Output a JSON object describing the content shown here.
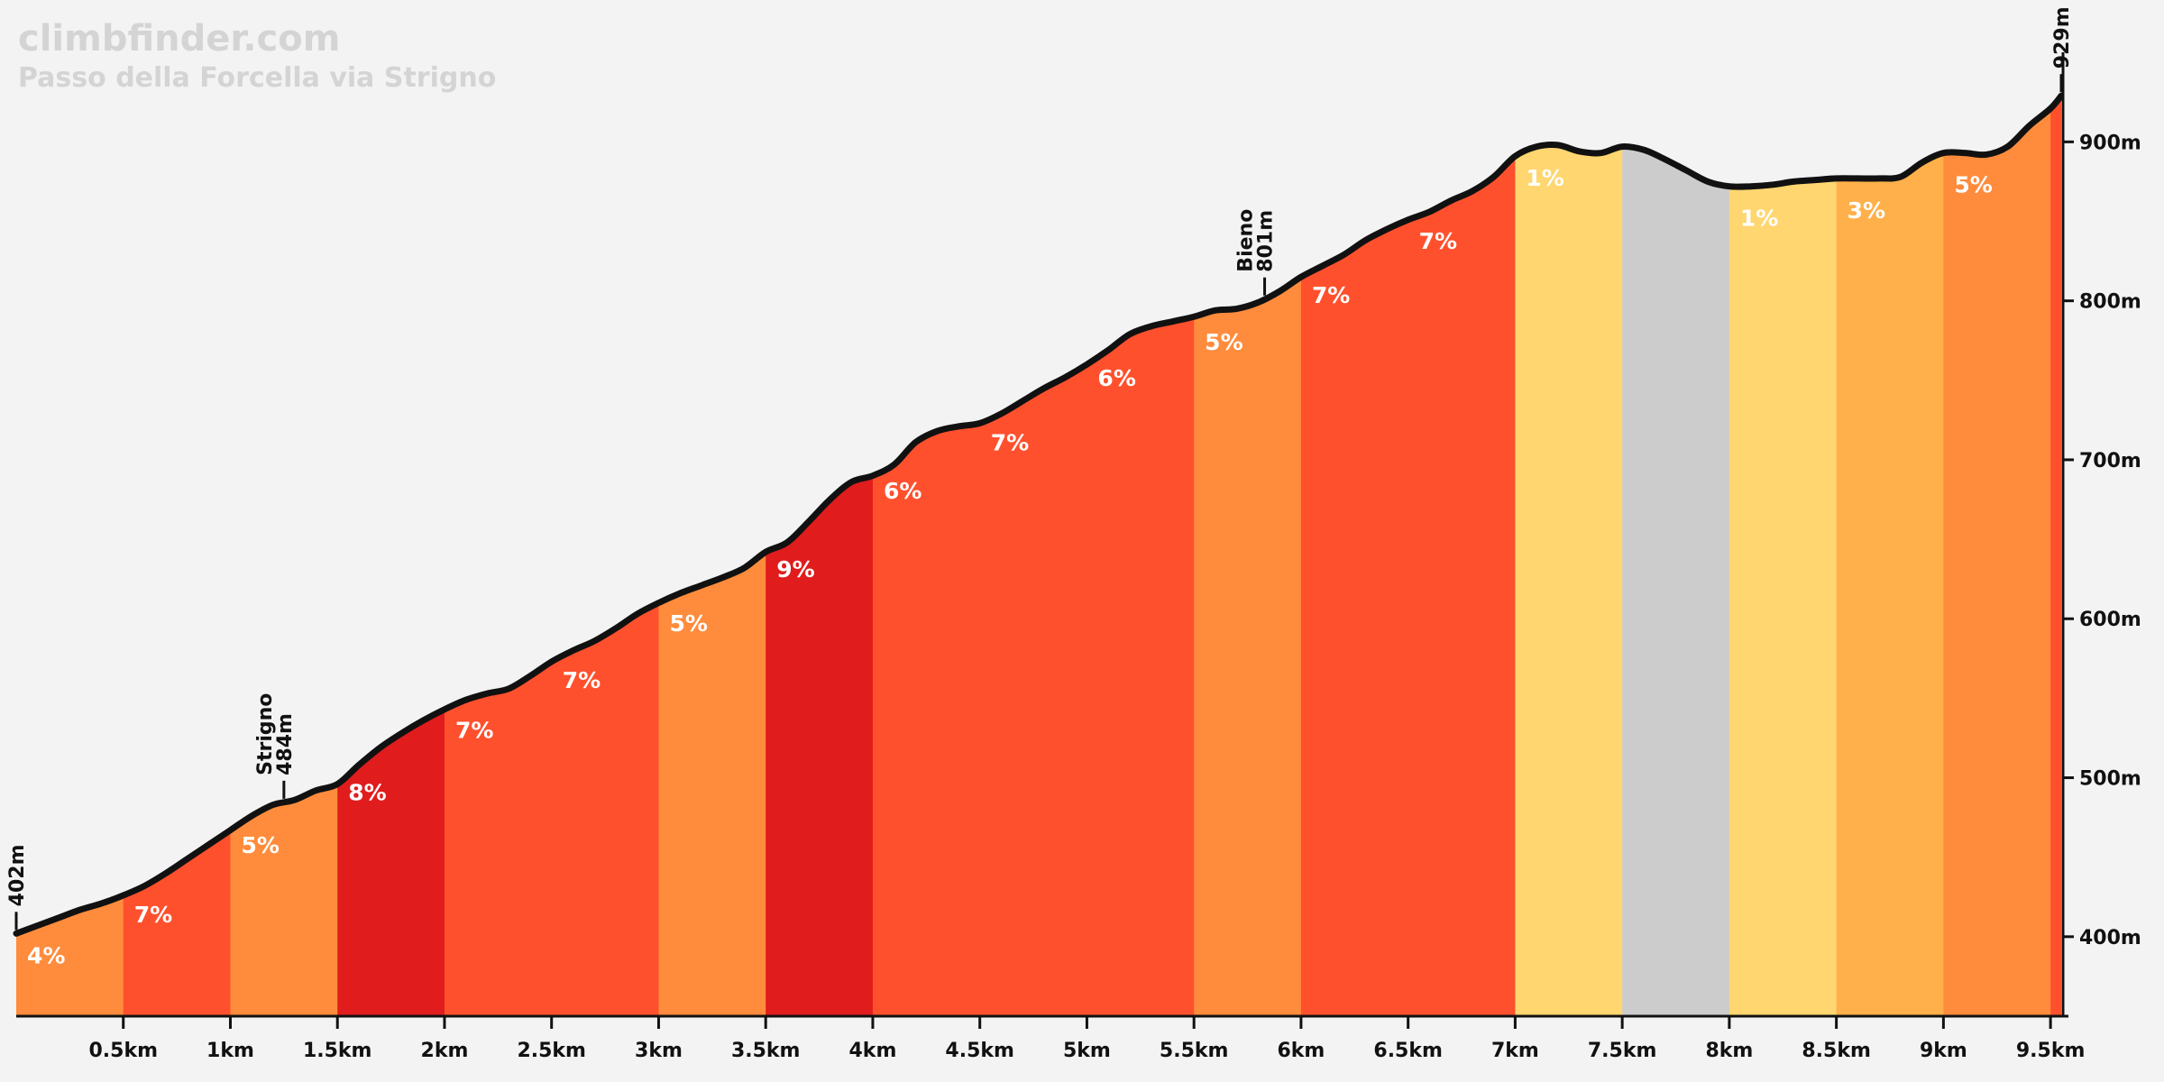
{
  "brand": {
    "site": "climbfinder.com",
    "climb": "Passo della Forcella via Strigno"
  },
  "colors": {
    "background": "#f3f3f3",
    "profile_line": "#111111",
    "grade_colors": {
      "0": "#cccccc",
      "1": "#ffd670",
      "3": "#ffb04a",
      "4": "#ff8c3c",
      "5": "#ff8c3c",
      "6": "#ff502d",
      "7": "#ff502d",
      "8": "#e01c1c",
      "9": "#e01c1c"
    }
  },
  "chart_data": {
    "type": "area",
    "title": "Passo della Forcella via Strigno",
    "xlabel": "",
    "ylabel": "",
    "xlim": [
      0,
      9.55
    ],
    "ylim": [
      350,
      945
    ],
    "x_ticks": [
      {
        "value": 0.5,
        "label": "0.5km"
      },
      {
        "value": 1,
        "label": "1km"
      },
      {
        "value": 1.5,
        "label": "1.5km"
      },
      {
        "value": 2,
        "label": "2km"
      },
      {
        "value": 2.5,
        "label": "2.5km"
      },
      {
        "value": 3,
        "label": "3km"
      },
      {
        "value": 3.5,
        "label": "3.5km"
      },
      {
        "value": 4,
        "label": "4km"
      },
      {
        "value": 4.5,
        "label": "4.5km"
      },
      {
        "value": 5,
        "label": "5km"
      },
      {
        "value": 5.5,
        "label": "5.5km"
      },
      {
        "value": 6,
        "label": "6km"
      },
      {
        "value": 6.5,
        "label": "6.5km"
      },
      {
        "value": 7,
        "label": "7km"
      },
      {
        "value": 7.5,
        "label": "7.5km"
      },
      {
        "value": 8,
        "label": "8km"
      },
      {
        "value": 8.5,
        "label": "8.5km"
      },
      {
        "value": 9,
        "label": "9km"
      },
      {
        "value": 9.5,
        "label": "9.5km"
      }
    ],
    "y_ticks": [
      {
        "value": 400,
        "label": "400m"
      },
      {
        "value": 500,
        "label": "500m"
      },
      {
        "value": 600,
        "label": "600m"
      },
      {
        "value": 700,
        "label": "700m"
      },
      {
        "value": 800,
        "label": "800m"
      },
      {
        "value": 900,
        "label": "900m"
      }
    ],
    "segments": [
      {
        "start": 0,
        "end": 0.5,
        "grade": 4,
        "label": "4%"
      },
      {
        "start": 0.5,
        "end": 1,
        "grade": 7,
        "label": "7%"
      },
      {
        "start": 1,
        "end": 1.5,
        "grade": 5,
        "label": "5%"
      },
      {
        "start": 1.5,
        "end": 2,
        "grade": 8,
        "label": "8%"
      },
      {
        "start": 2,
        "end": 2.5,
        "grade": 7,
        "label": "7%"
      },
      {
        "start": 2.5,
        "end": 3,
        "grade": 7,
        "label": "7%"
      },
      {
        "start": 3,
        "end": 3.5,
        "grade": 5,
        "label": "5%"
      },
      {
        "start": 3.5,
        "end": 4,
        "grade": 9,
        "label": "9%"
      },
      {
        "start": 4,
        "end": 4.5,
        "grade": 6,
        "label": "6%"
      },
      {
        "start": 4.5,
        "end": 5,
        "grade": 7,
        "label": "7%"
      },
      {
        "start": 5,
        "end": 5.5,
        "grade": 6,
        "label": "6%"
      },
      {
        "start": 5.5,
        "end": 6,
        "grade": 5,
        "label": "5%"
      },
      {
        "start": 6,
        "end": 6.5,
        "grade": 7,
        "label": "7%"
      },
      {
        "start": 6.5,
        "end": 7,
        "grade": 7,
        "label": "7%"
      },
      {
        "start": 7,
        "end": 7.5,
        "grade": 1,
        "label": "1%"
      },
      {
        "start": 7.5,
        "end": 8,
        "grade": 0,
        "label": ""
      },
      {
        "start": 8,
        "end": 8.5,
        "grade": 1,
        "label": "1%"
      },
      {
        "start": 8.5,
        "end": 9,
        "grade": 3,
        "label": "3%"
      },
      {
        "start": 9,
        "end": 9.5,
        "grade": 5,
        "label": "5%"
      },
      {
        "start": 9.5,
        "end": 9.55,
        "grade": 6,
        "label": ""
      }
    ],
    "profile": [
      [
        0,
        402
      ],
      [
        0.1,
        407
      ],
      [
        0.2,
        412
      ],
      [
        0.3,
        417
      ],
      [
        0.4,
        421
      ],
      [
        0.5,
        426
      ],
      [
        0.6,
        432
      ],
      [
        0.7,
        440
      ],
      [
        0.8,
        449
      ],
      [
        0.9,
        458
      ],
      [
        1.0,
        467
      ],
      [
        1.1,
        476
      ],
      [
        1.2,
        483
      ],
      [
        1.3,
        486
      ],
      [
        1.4,
        492
      ],
      [
        1.5,
        496
      ],
      [
        1.6,
        508
      ],
      [
        1.7,
        519
      ],
      [
        1.8,
        528
      ],
      [
        1.9,
        536
      ],
      [
        2.0,
        543
      ],
      [
        2.1,
        549
      ],
      [
        2.2,
        553
      ],
      [
        2.3,
        556
      ],
      [
        2.4,
        564
      ],
      [
        2.5,
        573
      ],
      [
        2.6,
        580
      ],
      [
        2.7,
        586
      ],
      [
        2.8,
        594
      ],
      [
        2.9,
        603
      ],
      [
        3.0,
        610
      ],
      [
        3.1,
        616
      ],
      [
        3.2,
        621
      ],
      [
        3.3,
        626
      ],
      [
        3.4,
        632
      ],
      [
        3.5,
        642
      ],
      [
        3.6,
        648
      ],
      [
        3.7,
        661
      ],
      [
        3.8,
        675
      ],
      [
        3.9,
        686
      ],
      [
        4.0,
        690
      ],
      [
        4.1,
        697
      ],
      [
        4.2,
        711
      ],
      [
        4.3,
        718
      ],
      [
        4.4,
        721
      ],
      [
        4.5,
        723
      ],
      [
        4.6,
        729
      ],
      [
        4.7,
        737
      ],
      [
        4.8,
        745
      ],
      [
        4.9,
        752
      ],
      [
        5.0,
        760
      ],
      [
        5.1,
        769
      ],
      [
        5.2,
        779
      ],
      [
        5.3,
        784
      ],
      [
        5.4,
        787
      ],
      [
        5.5,
        790
      ],
      [
        5.6,
        794
      ],
      [
        5.7,
        795
      ],
      [
        5.8,
        799
      ],
      [
        5.9,
        806
      ],
      [
        6.0,
        815
      ],
      [
        6.1,
        822
      ],
      [
        6.2,
        829
      ],
      [
        6.3,
        838
      ],
      [
        6.4,
        845
      ],
      [
        6.5,
        851
      ],
      [
        6.6,
        856
      ],
      [
        6.7,
        863
      ],
      [
        6.8,
        869
      ],
      [
        6.9,
        878
      ],
      [
        7.0,
        891
      ],
      [
        7.1,
        897
      ],
      [
        7.2,
        898
      ],
      [
        7.3,
        894
      ],
      [
        7.4,
        893
      ],
      [
        7.5,
        897
      ],
      [
        7.6,
        895
      ],
      [
        7.7,
        889
      ],
      [
        7.8,
        882
      ],
      [
        7.9,
        875
      ],
      [
        8.0,
        872
      ],
      [
        8.1,
        872
      ],
      [
        8.2,
        873
      ],
      [
        8.3,
        875
      ],
      [
        8.4,
        876
      ],
      [
        8.5,
        877
      ],
      [
        8.6,
        877
      ],
      [
        8.7,
        877
      ],
      [
        8.8,
        878
      ],
      [
        8.9,
        887
      ],
      [
        9.0,
        893
      ],
      [
        9.1,
        893
      ],
      [
        9.2,
        892
      ],
      [
        9.3,
        897
      ],
      [
        9.4,
        910
      ],
      [
        9.5,
        921
      ],
      [
        9.55,
        929
      ]
    ],
    "markers": [
      {
        "x": 0,
        "name": "",
        "elevation": "402m"
      },
      {
        "x": 1.25,
        "name": "Strigno",
        "elevation": "484m"
      },
      {
        "x": 5.83,
        "name": "Bieno",
        "elevation": "801m"
      },
      {
        "x": 9.55,
        "name": "",
        "elevation": "929m"
      }
    ]
  }
}
